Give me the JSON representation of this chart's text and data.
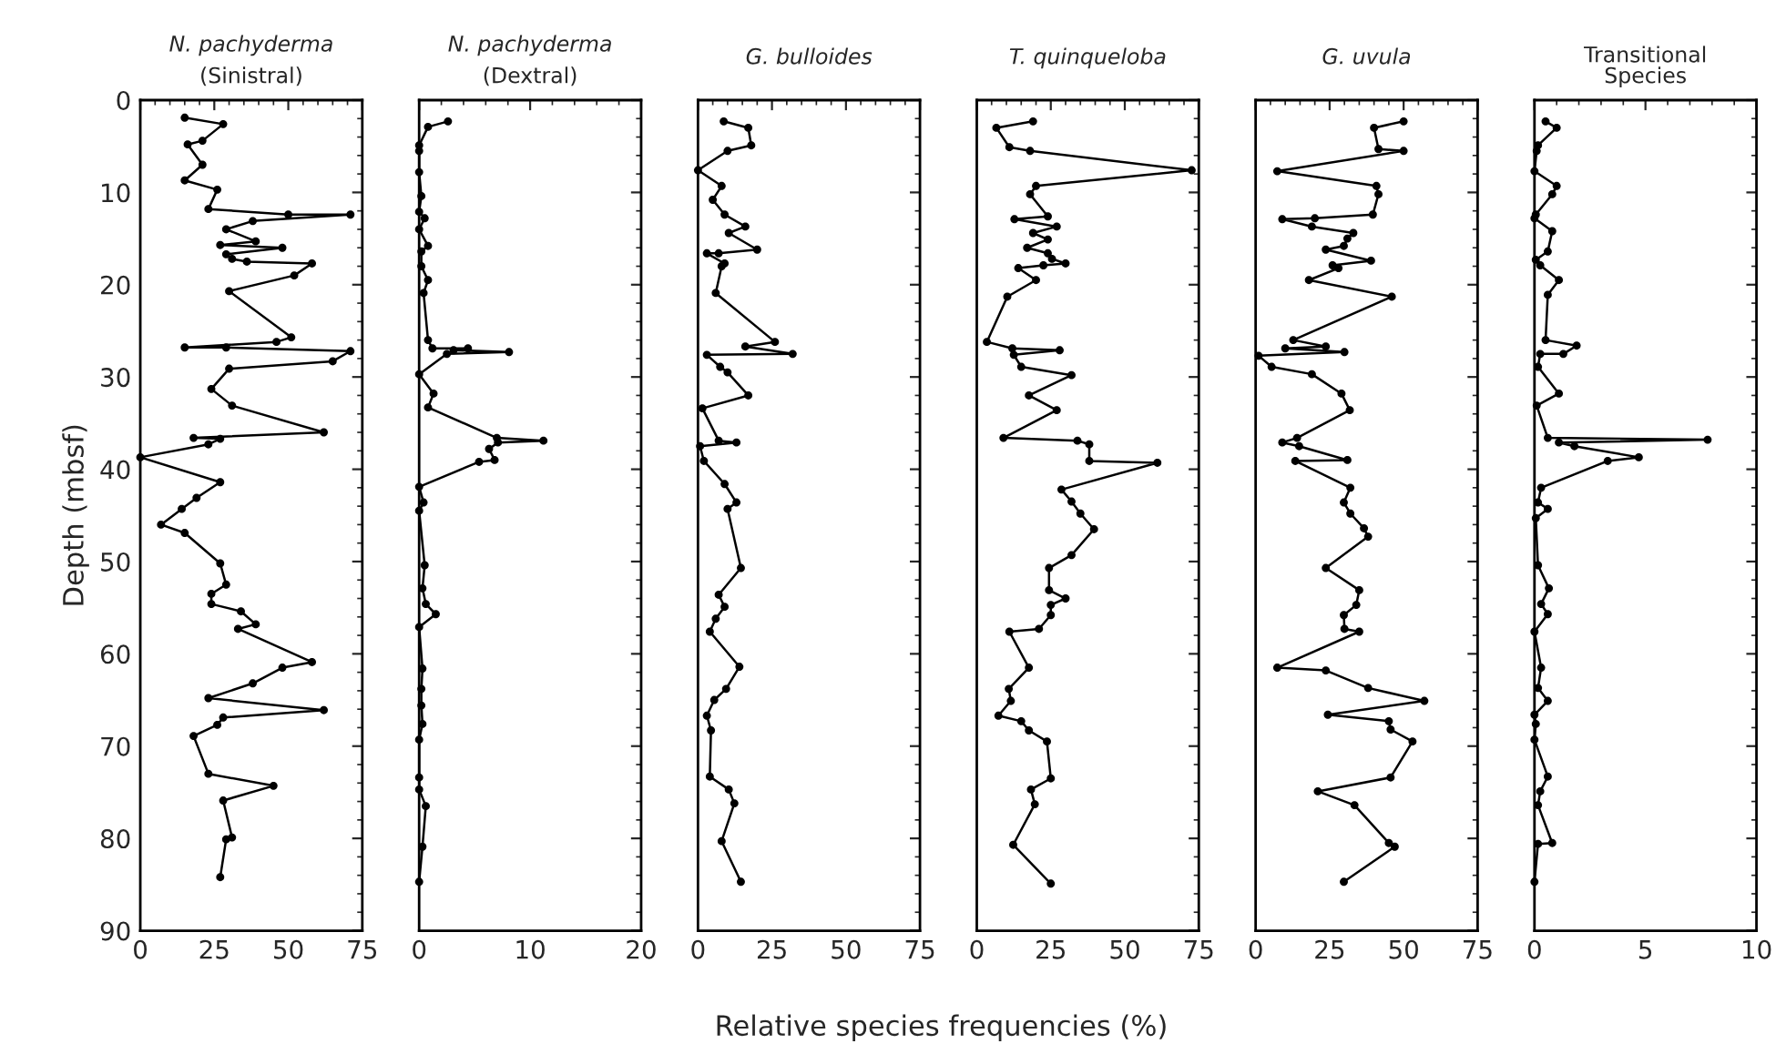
{
  "chart_data": [
    {
      "type": "line",
      "title": "N. pachyderma",
      "subtitle": "(Sinistral)",
      "ylabel": "Depth (mbsf)",
      "annotations": [
        "Relative species frequencies (%)"
      ],
      "xlim": [
        0,
        75
      ],
      "xticks": [
        0,
        25,
        50,
        75
      ],
      "ylim": [
        90,
        0
      ],
      "yticks": [
        0,
        10,
        20,
        30,
        40,
        50,
        60,
        70,
        80,
        90
      ],
      "marker": "circle",
      "line_style": "solid",
      "grid": false,
      "legend": false,
      "series": [
        {
          "color": "#000000",
          "x": [
            15,
            28,
            21,
            16,
            21,
            15,
            26,
            23,
            50,
            71,
            38,
            29,
            39,
            27,
            48,
            29,
            31,
            36,
            58,
            52,
            30,
            51,
            46,
            15,
            29,
            71,
            65,
            30,
            24,
            31,
            62,
            18,
            27,
            23,
            0,
            27,
            19,
            14,
            7,
            15,
            27,
            29,
            24,
            24,
            34,
            39,
            33,
            58,
            48,
            38,
            23,
            62,
            28,
            26,
            18,
            23,
            45,
            28,
            31,
            29,
            27
          ],
          "values": [
            1.9,
            2.6,
            4.4,
            4.8,
            7.0,
            8.7,
            9.7,
            11.8,
            12.4,
            12.4,
            13.1,
            14.0,
            15.3,
            15.7,
            16.0,
            16.7,
            17.2,
            17.5,
            17.7,
            19.0,
            20.7,
            25.7,
            26.2,
            26.8,
            26.8,
            27.2,
            28.3,
            29.1,
            31.3,
            33.1,
            36.0,
            36.6,
            36.7,
            37.3,
            38.7,
            41.4,
            43.1,
            44.3,
            46.0,
            46.9,
            50.2,
            52.5,
            53.5,
            54.6,
            55.4,
            56.8,
            57.3,
            60.9,
            61.5,
            63.2,
            64.8,
            66.1,
            66.9,
            67.7,
            68.9,
            73.0,
            74.3,
            75.9,
            79.9,
            80.1,
            84.2
          ]
        }
      ]
    },
    {
      "type": "line",
      "title": "N. pachyderma",
      "subtitle": "(Dextral)",
      "xlim": [
        0,
        20
      ],
      "xticks": [
        0,
        10,
        20
      ],
      "ylim": [
        90,
        0
      ],
      "yticks": [
        0,
        10,
        20,
        30,
        40,
        50,
        60,
        70,
        80,
        90
      ],
      "tick_labels": "x",
      "marker": "circle",
      "line_style": "solid",
      "grid": false,
      "legend": false,
      "series": [
        {
          "color": "#000000",
          "x": [
            2.6,
            0.8,
            0,
            0,
            0,
            0.2,
            0,
            0.5,
            0,
            0.8,
            0.2,
            0.2,
            0.8,
            0.4,
            0.8,
            1.2,
            4.4,
            3.1,
            8.1,
            2.5,
            0,
            1.3,
            0.8,
            7.0,
            11.2,
            7.1,
            6.3,
            6.8,
            5.4,
            0,
            0.4,
            0,
            0.5,
            0.3,
            0.6,
            1.5,
            0,
            0.3,
            0.2,
            0.2,
            0.3,
            0,
            0,
            0,
            0.6,
            0.3,
            0
          ],
          "values": [
            2.3,
            2.9,
            4.9,
            5.5,
            7.8,
            10.4,
            12.1,
            12.8,
            14.0,
            15.8,
            16.4,
            18.0,
            19.5,
            20.9,
            26.0,
            26.9,
            26.9,
            27.1,
            27.3,
            27.5,
            29.7,
            31.8,
            33.3,
            36.6,
            36.9,
            37.1,
            37.8,
            39.0,
            39.2,
            41.9,
            43.6,
            44.5,
            50.4,
            52.9,
            54.6,
            55.7,
            57.1,
            61.6,
            63.8,
            65.6,
            67.6,
            69.3,
            73.4,
            74.7,
            76.5,
            80.9,
            84.7
          ]
        }
      ]
    },
    {
      "type": "line",
      "title": "G. bulloides",
      "xlim": [
        0,
        75
      ],
      "xticks": [
        0,
        25,
        50,
        75
      ],
      "ylim": [
        90,
        0
      ],
      "yticks": [
        0,
        10,
        20,
        30,
        40,
        50,
        60,
        70,
        80,
        90
      ],
      "tick_labels": "x",
      "marker": "circle",
      "line_style": "solid",
      "grid": false,
      "legend": false,
      "series": [
        {
          "color": "#000000",
          "x": [
            8.7,
            17,
            18,
            10,
            0,
            8,
            5,
            9,
            16,
            10.4,
            20,
            7,
            3,
            9,
            8,
            6,
            26,
            16,
            32,
            3,
            7.5,
            10,
            17,
            1.5,
            7,
            13,
            0.7,
            2,
            9,
            13,
            10,
            14.5,
            7,
            9,
            6,
            4,
            14,
            9.5,
            5.5,
            3,
            4.4,
            4,
            10.4,
            12.3,
            8,
            14.5
          ],
          "values": [
            2.3,
            3.0,
            4.9,
            5.5,
            7.6,
            9.3,
            10.8,
            12.4,
            13.7,
            14.4,
            16.2,
            16.6,
            16.6,
            17.7,
            18.0,
            20.9,
            26.2,
            26.7,
            27.5,
            27.6,
            28.9,
            29.5,
            32.0,
            33.4,
            36.9,
            37.1,
            37.5,
            39.1,
            41.6,
            43.6,
            44.3,
            50.7,
            53.6,
            54.9,
            56.2,
            57.6,
            61.4,
            63.8,
            65.0,
            66.7,
            68.3,
            73.3,
            74.7,
            76.2,
            80.3,
            84.7
          ]
        }
      ]
    },
    {
      "type": "line",
      "title": "T. quinqueloba",
      "xlim": [
        0,
        75
      ],
      "xticks": [
        0,
        25,
        50,
        75
      ],
      "ylim": [
        90,
        0
      ],
      "yticks": [
        0,
        10,
        20,
        30,
        40,
        50,
        60,
        70,
        80,
        90
      ],
      "tick_labels": "x",
      "marker": "circle",
      "line_style": "solid",
      "grid": false,
      "legend": false,
      "series": [
        {
          "color": "#000000",
          "x": [
            19,
            6.6,
            11,
            18,
            72.6,
            20,
            18,
            24,
            12.7,
            27,
            19,
            24,
            17,
            24,
            25.4,
            30,
            22.5,
            14,
            20,
            10.3,
            3.4,
            12,
            28,
            12.5,
            15,
            32,
            17.6,
            27,
            9,
            34,
            38,
            38,
            61,
            28.6,
            32,
            35,
            39.6,
            32,
            24.4,
            24.4,
            30,
            25,
            25,
            21,
            11,
            17.6,
            10.8,
            11.5,
            7.3,
            15,
            17.6,
            23.7,
            25,
            18.3,
            19.6,
            12.3,
            25
          ],
          "values": [
            2.3,
            3.0,
            5.1,
            5.5,
            7.6,
            9.3,
            10.2,
            12.6,
            12.9,
            13.7,
            14.4,
            15.1,
            16.0,
            16.6,
            17.2,
            17.7,
            17.9,
            18.2,
            19.5,
            21.3,
            26.2,
            26.9,
            27.1,
            27.6,
            28.9,
            29.8,
            32.0,
            33.6,
            36.6,
            36.9,
            37.3,
            39.1,
            39.3,
            42.2,
            43.5,
            44.8,
            46.5,
            49.3,
            50.7,
            53.1,
            54.0,
            54.7,
            55.8,
            57.3,
            57.6,
            61.5,
            63.8,
            65.1,
            66.7,
            67.3,
            68.3,
            69.5,
            73.5,
            74.7,
            76.3,
            80.7,
            84.9
          ]
        }
      ]
    },
    {
      "type": "line",
      "title": "G. uvula",
      "xlim": [
        0,
        75
      ],
      "xticks": [
        0,
        25,
        50,
        75
      ],
      "ylim": [
        90,
        0
      ],
      "yticks": [
        0,
        10,
        20,
        30,
        40,
        50,
        60,
        70,
        80,
        90
      ],
      "tick_labels": "x",
      "marker": "circle",
      "line_style": "solid",
      "grid": false,
      "legend": false,
      "series": [
        {
          "color": "#000000",
          "x": [
            50,
            40,
            41.5,
            50,
            7.3,
            40.8,
            41.5,
            39.6,
            20,
            9,
            19,
            33,
            31,
            29.8,
            23.7,
            39,
            26,
            28,
            18,
            46,
            12.7,
            23.7,
            10,
            30,
            1,
            5.4,
            19,
            29,
            31.8,
            14,
            9,
            14.7,
            31,
            13.4,
            32,
            29.8,
            32,
            36.6,
            38,
            23.7,
            35,
            34,
            29.8,
            30,
            35,
            7.3,
            23.7,
            38,
            57,
            24.4,
            45,
            45.6,
            53,
            45.6,
            21,
            33.4,
            45,
            47,
            29.8
          ],
          "values": [
            2.3,
            3.0,
            5.3,
            5.5,
            7.7,
            9.3,
            10.2,
            12.4,
            12.8,
            12.9,
            13.7,
            14.4,
            15.0,
            15.8,
            16.2,
            17.4,
            17.9,
            18.2,
            19.5,
            21.3,
            26.0,
            26.7,
            26.9,
            27.3,
            27.7,
            28.9,
            29.7,
            31.8,
            33.6,
            36.6,
            37.1,
            37.5,
            39.0,
            39.1,
            42.0,
            43.6,
            44.8,
            46.4,
            47.3,
            50.7,
            53.1,
            54.7,
            55.8,
            57.3,
            57.6,
            61.5,
            61.8,
            63.7,
            65.1,
            66.6,
            67.3,
            68.2,
            69.5,
            73.4,
            74.9,
            76.4,
            80.5,
            80.9,
            84.7
          ]
        }
      ]
    },
    {
      "type": "line",
      "title": "Transitional\nSpecies",
      "xlim": [
        0,
        10
      ],
      "xticks": [
        0,
        5,
        10
      ],
      "ylim": [
        90,
        0
      ],
      "yticks": [
        0,
        10,
        20,
        30,
        40,
        50,
        60,
        70,
        80,
        90
      ],
      "tick_labels": "x",
      "marker": "circle",
      "line_style": "solid",
      "grid": false,
      "legend": false,
      "series": [
        {
          "color": "#000000",
          "x": [
            0.5,
            1.0,
            0.16,
            0.1,
            0,
            1.0,
            0.8,
            0.06,
            0,
            0.8,
            0.6,
            0.06,
            0.26,
            1.1,
            0.6,
            0.5,
            1.9,
            1.3,
            0.26,
            0.16,
            1.1,
            0.1,
            0.6,
            7.8,
            1.1,
            1.8,
            4.7,
            3.3,
            0.3,
            0.16,
            0.6,
            0.06,
            0.16,
            0.65,
            0.3,
            0.6,
            0,
            0.3,
            0.16,
            0.6,
            0,
            0.06,
            0,
            0.6,
            0.26,
            0.16,
            0.8,
            0.16,
            0
          ],
          "values": [
            2.3,
            3.0,
            4.9,
            5.5,
            7.7,
            9.3,
            10.2,
            12.4,
            12.8,
            14.2,
            16.4,
            17.3,
            17.9,
            19.5,
            21.1,
            26.0,
            26.6,
            27.5,
            27.5,
            28.9,
            31.8,
            33.1,
            36.6,
            36.8,
            37.1,
            37.5,
            38.7,
            39.1,
            42.0,
            43.6,
            44.3,
            45.3,
            50.4,
            52.9,
            54.6,
            55.7,
            57.6,
            61.5,
            63.7,
            65.1,
            66.6,
            67.6,
            69.3,
            73.3,
            74.9,
            76.4,
            80.5,
            80.6,
            84.7
          ]
        }
      ]
    }
  ]
}
